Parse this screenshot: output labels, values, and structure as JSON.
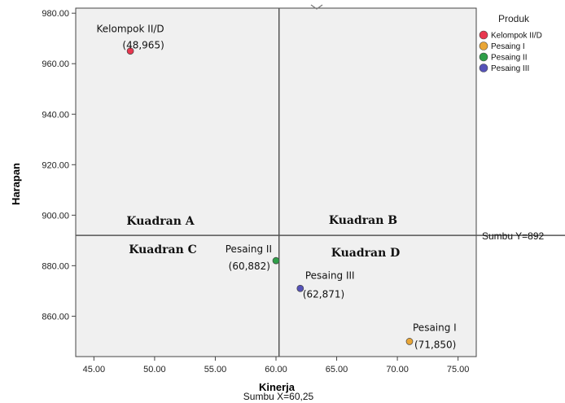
{
  "chart_data": {
    "type": "scatter",
    "xlabel": "Kinerja",
    "ylabel": "Harapan",
    "xlim": [
      43.5,
      76.5
    ],
    "ylim": [
      844,
      982
    ],
    "x_ticks": [
      "45.00",
      "50.00",
      "55.00",
      "60.00",
      "65.00",
      "70.00",
      "75.00"
    ],
    "y_ticks": [
      "860.00",
      "880.00",
      "900.00",
      "920.00",
      "940.00",
      "960.00",
      "980.00"
    ],
    "legend": {
      "title": "Produk",
      "position": "right",
      "items": [
        {
          "name": "Kelompok II/D",
          "color": "#e8374f"
        },
        {
          "name": "Pesaing I",
          "color": "#e9a636"
        },
        {
          "name": "Pesaing II",
          "color": "#2e9e48"
        },
        {
          "name": "Pesaing III",
          "color": "#5552b8"
        }
      ]
    },
    "points": [
      {
        "series": "Kelompok II/D",
        "x": 48,
        "y": 965,
        "label_name": "Kelompok II/D",
        "label_coords": "(48,965)",
        "color": "#e8374f"
      },
      {
        "series": "Pesaing I",
        "x": 71,
        "y": 850,
        "label_name": "Pesaing I",
        "label_coords": "(71,850)",
        "color": "#e9a636"
      },
      {
        "series": "Pesaing II",
        "x": 60,
        "y": 882,
        "label_name": "Pesaing II",
        "label_coords": "(60,882)",
        "color": "#2e9e48"
      },
      {
        "series": "Pesaing III",
        "x": 62,
        "y": 871,
        "label_name": "Pesaing III",
        "label_coords": "(62,871)",
        "color": "#5552b8"
      }
    ],
    "reference_lines": {
      "x": {
        "value": 60.25,
        "label": "Sumbu X=60,25"
      },
      "y": {
        "value": 892,
        "label": "Sumbu Y=892"
      }
    },
    "quadrants": {
      "A": "Kuadran A",
      "B": "Kuadran B",
      "C": "Kuadran C",
      "D": "Kuadran D"
    },
    "grid": false,
    "plot_background": "#f0f0f0"
  }
}
